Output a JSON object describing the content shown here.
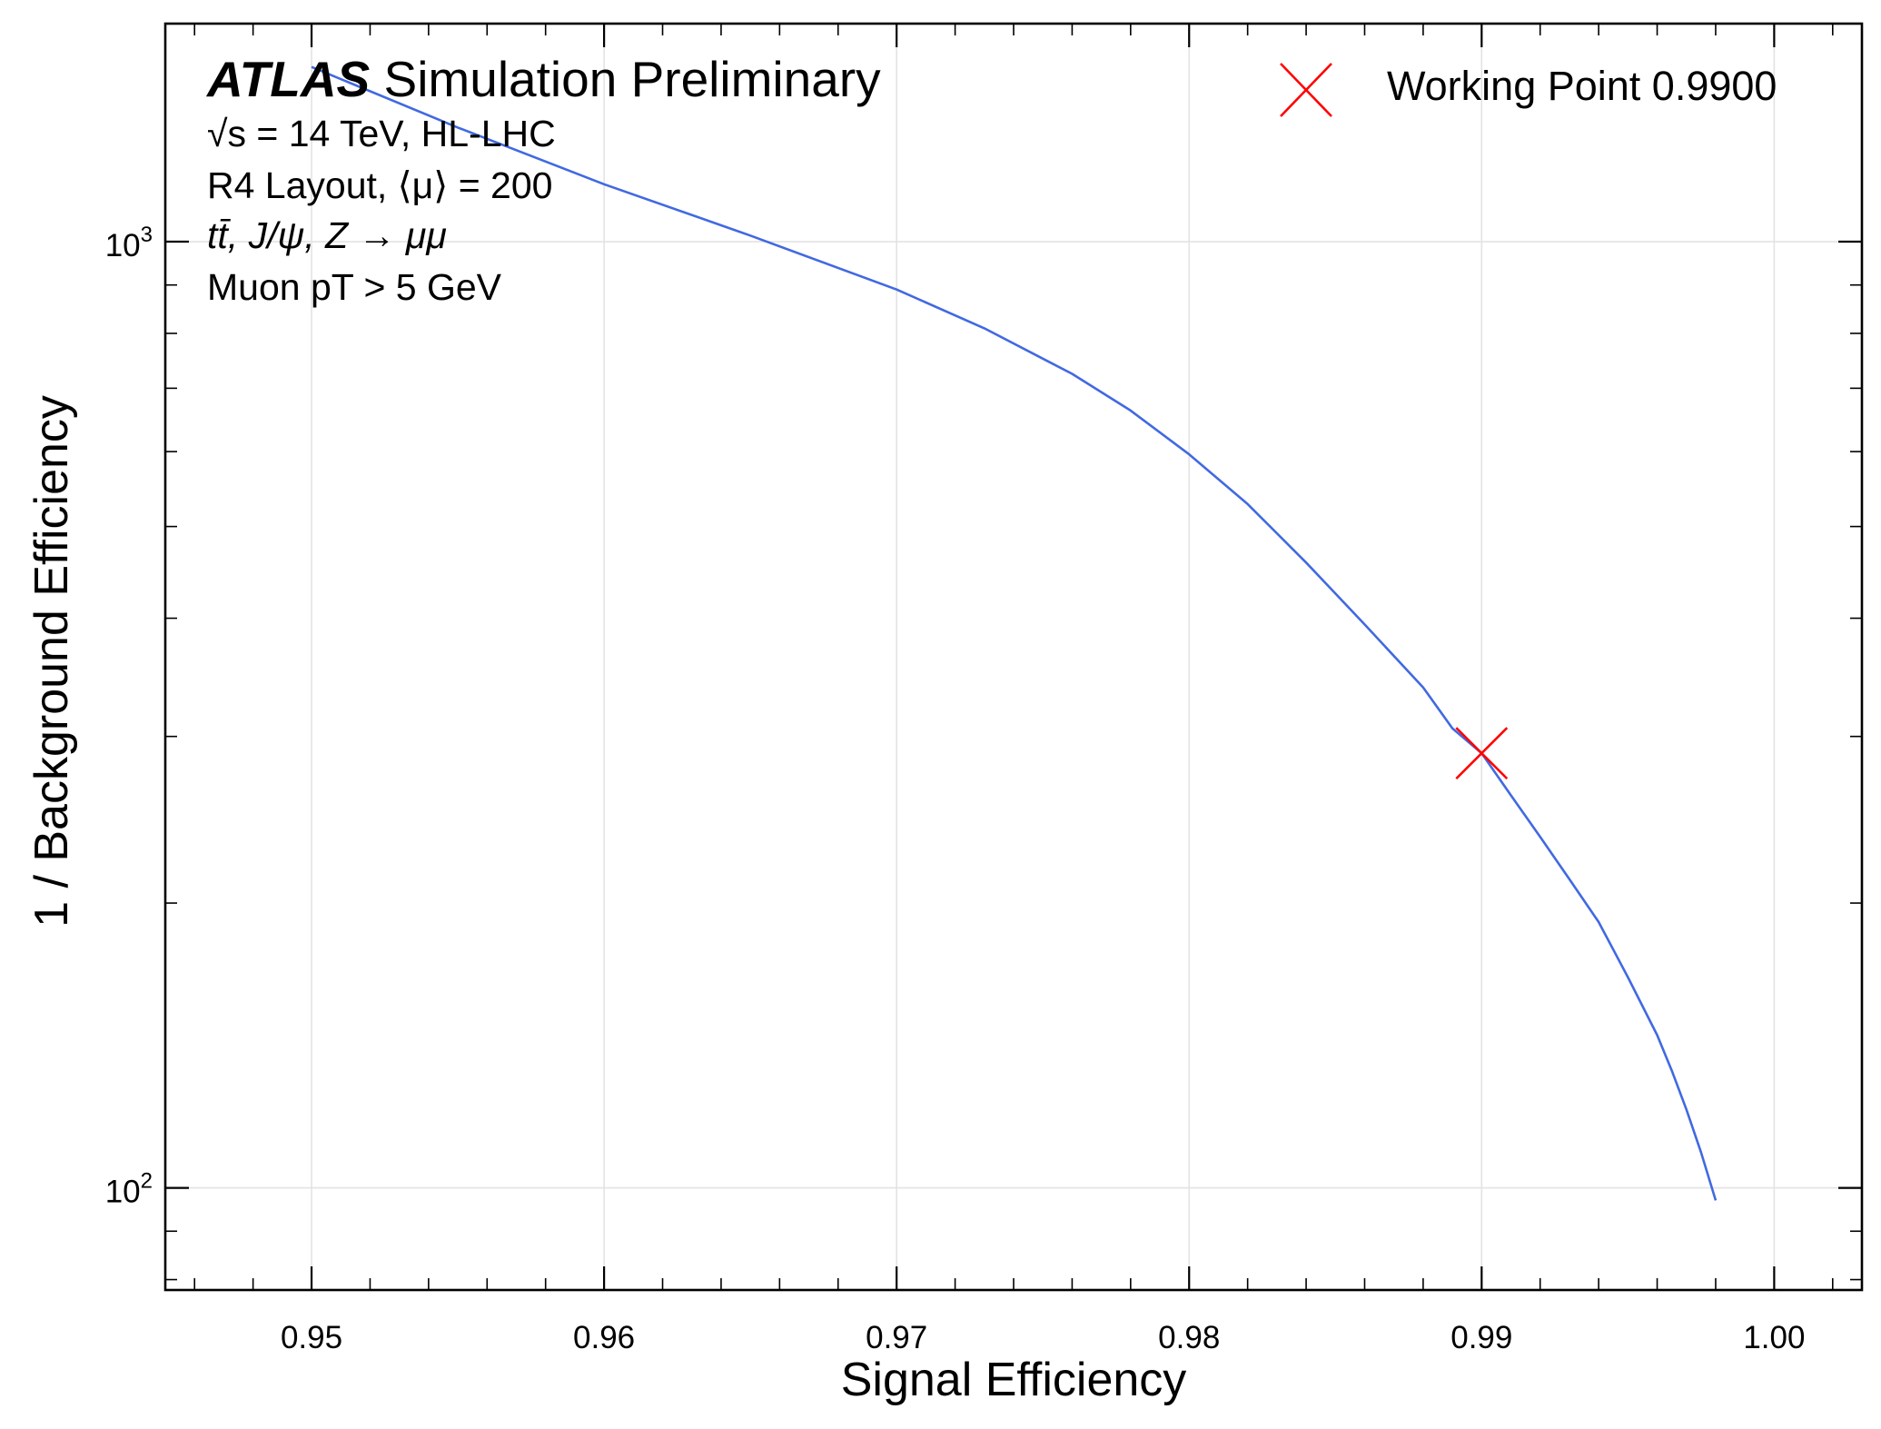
{
  "chart_data": {
    "type": "line",
    "title": {
      "experiment": "ATLAS",
      "label": " Simulation Preliminary"
    },
    "annotations": [
      "√s = 14 TeV, HL-LHC",
      "R4 Layout, ⟨μ⟩ = 200",
      "tt̄, J/ψ, Z → μμ",
      "Muon pT > 5 GeV"
    ],
    "xlabel": "Signal Efficiency",
    "ylabel": "1 / Background Efficiency",
    "xlim": [
      0.945,
      1.003
    ],
    "ylim": [
      78,
      1700
    ],
    "yscale": "log",
    "xticks": [
      0.95,
      0.96,
      0.97,
      0.98,
      0.99,
      1.0
    ],
    "xtick_labels": [
      "0.95",
      "0.96",
      "0.97",
      "0.98",
      "0.99",
      "1.00"
    ],
    "yticks": [
      100,
      1000
    ],
    "ytick_labels": [
      {
        "base": "10",
        "exp": "2"
      },
      {
        "base": "10",
        "exp": "3"
      }
    ],
    "grid": true,
    "series": [
      {
        "color": "#4169e1",
        "x": [
          0.95,
          0.955,
          0.96,
          0.965,
          0.97,
          0.973,
          0.976,
          0.978,
          0.98,
          0.982,
          0.984,
          0.986,
          0.988,
          0.989,
          0.99,
          0.991,
          0.992,
          0.993,
          0.994,
          0.995,
          0.996,
          0.9965,
          0.997,
          0.9975,
          0.998
        ],
        "y": [
          1530,
          1320,
          1150,
          1015,
          890,
          810,
          725,
          663,
          596,
          528,
          458,
          394,
          338,
          306,
          288,
          260,
          235,
          212,
          191,
          167,
          145,
          133,
          121,
          109,
          97
        ]
      }
    ],
    "markers": [
      {
        "name": "Working Point 0.9900",
        "x": 0.99,
        "y": 288,
        "symbol": "x",
        "color": "#ff0000"
      }
    ],
    "legend_position": "top-right"
  }
}
